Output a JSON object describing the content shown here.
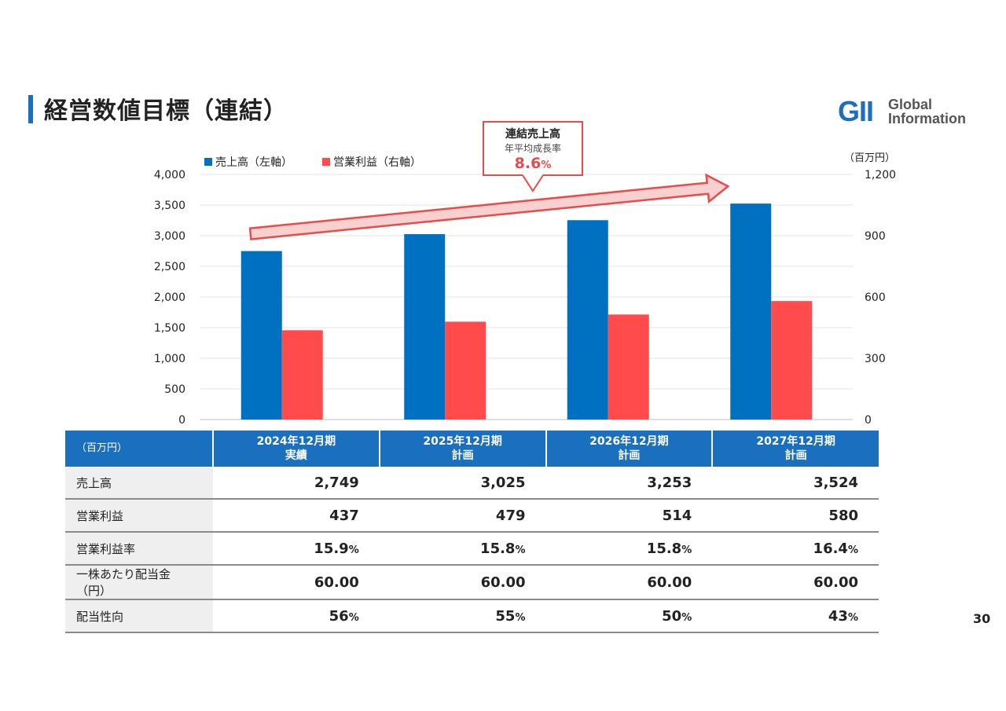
{
  "page": {
    "title": "経営数値目標（連結）",
    "page_number": "30"
  },
  "logo": {
    "mark": "GII",
    "line1": "Global",
    "line2": "Information"
  },
  "callout": {
    "line1": "連結売上高",
    "line2": "年平均成長率",
    "value": "8.6",
    "unit": "%"
  },
  "chart_data": {
    "type": "bar",
    "categories": [
      "2024年12月期",
      "2025年12月期",
      "2026年12月期",
      "2027年12月期"
    ],
    "series": [
      {
        "name": "売上高（左軸）",
        "values": [
          2749,
          3025,
          3253,
          3524
        ],
        "axis": "left",
        "color": "#0070c0"
      },
      {
        "name": "営業利益（右軸）",
        "values": [
          437,
          479,
          514,
          580
        ],
        "axis": "right",
        "color": "#ff4b4b"
      }
    ],
    "y_left": {
      "min": 0,
      "max": 4000,
      "ticks": [
        0,
        500,
        1000,
        1500,
        2000,
        2500,
        3000,
        3500,
        4000
      ],
      "tick_labels": [
        "0",
        "500",
        "1,000",
        "1,500",
        "2,000",
        "2,500",
        "3,000",
        "3,500",
        "4,000"
      ]
    },
    "y_right": {
      "min": 0,
      "max": 1200,
      "ticks": [
        0,
        300,
        600,
        900,
        1200
      ],
      "tick_labels": [
        "0",
        "300",
        "600",
        "900",
        "1,200"
      ],
      "unit_label": "（百万円）"
    },
    "grid": true,
    "legend": "top-left"
  },
  "table": {
    "unit_label": "（百万円）",
    "columns": [
      {
        "line1": "2024年12月期",
        "line2": "実績"
      },
      {
        "line1": "2025年12月期",
        "line2": "計画"
      },
      {
        "line1": "2026年12月期",
        "line2": "計画"
      },
      {
        "line1": "2027年12月期",
        "line2": "計画"
      }
    ],
    "rows": [
      {
        "label": "売上高",
        "values": [
          "2,749",
          "3,025",
          "3,253",
          "3,524"
        ],
        "suffix": ""
      },
      {
        "label": "営業利益",
        "values": [
          "437",
          "479",
          "514",
          "580"
        ],
        "suffix": ""
      },
      {
        "label": "営業利益率",
        "values": [
          "15.9",
          "15.8",
          "15.8",
          "16.4"
        ],
        "suffix": "%"
      },
      {
        "label": "一株あたり配当金（円）",
        "values": [
          "60.00",
          "60.00",
          "60.00",
          "60.00"
        ],
        "suffix": ""
      },
      {
        "label": "配当性向",
        "values": [
          "56",
          "55",
          "50",
          "43"
        ],
        "suffix": "%"
      }
    ]
  },
  "colors": {
    "accent_blue": "#1a6fbf",
    "bar_blue": "#0070c0",
    "bar_red": "#ff4b4b",
    "arrow_fill": "#f9d0d0",
    "arrow_stroke": "#e84b4b"
  }
}
